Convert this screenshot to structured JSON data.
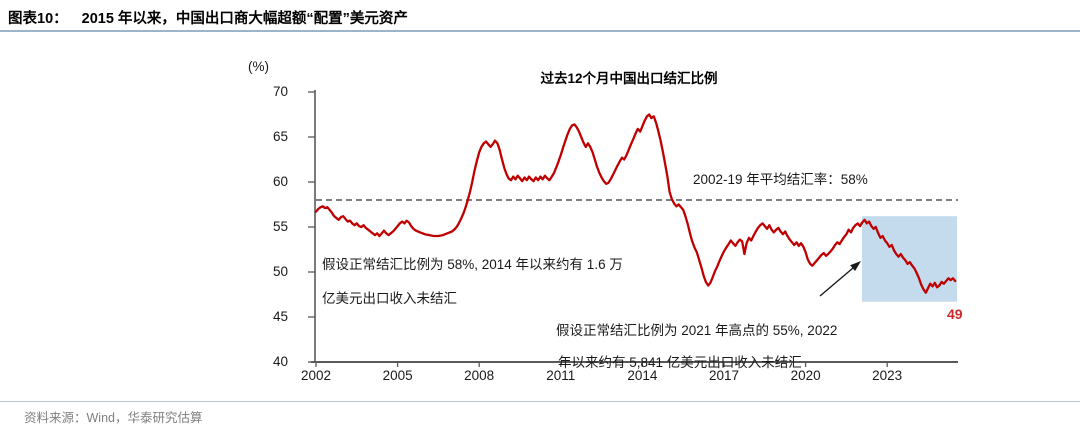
{
  "header": {
    "tag": "图表10：",
    "title": "2015 年以来，中国出口商大幅超额“配置”美元资产"
  },
  "source": "资料来源：Wind，华泰研究估算",
  "chart_data": {
    "type": "line",
    "title": "过去12个月中国出口结汇比例",
    "unit_label": "(%)",
    "xlabel": "",
    "ylabel": "(%)",
    "ylim": [
      40,
      70
    ],
    "yticks": [
      70,
      65,
      60,
      55,
      50,
      45,
      40
    ],
    "xticks": [
      2002,
      2005,
      2008,
      2011,
      2014,
      2017,
      2020,
      2023
    ],
    "xlim": [
      2002.0,
      2025.6
    ],
    "grid": false,
    "legend": "none",
    "colors": {
      "series": "#c00000",
      "reference": "#555555",
      "highlight": "#c4dbed",
      "axis": "#595959",
      "end_label": "#cc2a2a"
    },
    "reference_line": {
      "value": 58,
      "style": "dashed"
    },
    "highlight_region": {
      "x0": 2022.07,
      "x1": 2025.57,
      "y_bottom": 46.7,
      "y_top": 56.2
    },
    "annotations": {
      "avg": "2002-19 年平均结汇率：58%",
      "note1_line1": "假设正常结汇比例为 58%, 2014 年以来约有 1.6 万",
      "note1_line2": "亿美元出口收入未结汇",
      "note2_line1": "假设正常结汇比例为 2021 年高点的 55%, 2022",
      "note2_line2": "年以来约有 5,841 亿美元出口收入未结汇",
      "end_label": "49"
    },
    "series": [
      {
        "name": "过去12个月中国出口结汇比例",
        "color": "#c00000",
        "points": [
          [
            2002.0,
            56.7
          ],
          [
            2002.08,
            57.0
          ],
          [
            2002.17,
            57.2
          ],
          [
            2002.25,
            57.3
          ],
          [
            2002.33,
            57.1
          ],
          [
            2002.42,
            57.2
          ],
          [
            2002.5,
            56.9
          ],
          [
            2002.58,
            56.6
          ],
          [
            2002.67,
            56.2
          ],
          [
            2002.75,
            56.0
          ],
          [
            2002.83,
            55.8
          ],
          [
            2002.92,
            56.1
          ],
          [
            2003.0,
            56.2
          ],
          [
            2003.08,
            55.9
          ],
          [
            2003.17,
            55.6
          ],
          [
            2003.25,
            55.7
          ],
          [
            2003.33,
            55.4
          ],
          [
            2003.42,
            55.2
          ],
          [
            2003.5,
            55.4
          ],
          [
            2003.58,
            55.1
          ],
          [
            2003.67,
            55.0
          ],
          [
            2003.75,
            55.2
          ],
          [
            2003.83,
            54.9
          ],
          [
            2003.92,
            54.7
          ],
          [
            2004.0,
            54.5
          ],
          [
            2004.08,
            54.3
          ],
          [
            2004.17,
            54.1
          ],
          [
            2004.25,
            54.3
          ],
          [
            2004.33,
            54.0
          ],
          [
            2004.42,
            54.3
          ],
          [
            2004.5,
            54.6
          ],
          [
            2004.58,
            54.3
          ],
          [
            2004.67,
            54.1
          ],
          [
            2004.75,
            54.3
          ],
          [
            2004.83,
            54.5
          ],
          [
            2004.92,
            54.8
          ],
          [
            2005.0,
            55.1
          ],
          [
            2005.08,
            55.4
          ],
          [
            2005.17,
            55.6
          ],
          [
            2005.25,
            55.4
          ],
          [
            2005.33,
            55.7
          ],
          [
            2005.42,
            55.5
          ],
          [
            2005.5,
            55.1
          ],
          [
            2005.58,
            54.8
          ],
          [
            2005.67,
            54.6
          ],
          [
            2005.75,
            54.5
          ],
          [
            2005.83,
            54.4
          ],
          [
            2005.92,
            54.3
          ],
          [
            2006.0,
            54.2
          ],
          [
            2006.17,
            54.1
          ],
          [
            2006.33,
            54.0
          ],
          [
            2006.5,
            54.0
          ],
          [
            2006.67,
            54.1
          ],
          [
            2006.83,
            54.3
          ],
          [
            2007.0,
            54.5
          ],
          [
            2007.08,
            54.7
          ],
          [
            2007.17,
            55.0
          ],
          [
            2007.25,
            55.4
          ],
          [
            2007.33,
            55.9
          ],
          [
            2007.42,
            56.5
          ],
          [
            2007.5,
            57.2
          ],
          [
            2007.58,
            58.0
          ],
          [
            2007.67,
            59.0
          ],
          [
            2007.75,
            60.1
          ],
          [
            2007.83,
            61.3
          ],
          [
            2007.92,
            62.4
          ],
          [
            2008.0,
            63.3
          ],
          [
            2008.08,
            63.9
          ],
          [
            2008.17,
            64.3
          ],
          [
            2008.25,
            64.5
          ],
          [
            2008.33,
            64.2
          ],
          [
            2008.42,
            63.9
          ],
          [
            2008.5,
            64.2
          ],
          [
            2008.58,
            64.6
          ],
          [
            2008.67,
            64.3
          ],
          [
            2008.75,
            63.6
          ],
          [
            2008.83,
            62.6
          ],
          [
            2008.92,
            61.6
          ],
          [
            2009.0,
            60.9
          ],
          [
            2009.08,
            60.4
          ],
          [
            2009.17,
            60.2
          ],
          [
            2009.25,
            60.6
          ],
          [
            2009.33,
            60.3
          ],
          [
            2009.42,
            60.7
          ],
          [
            2009.5,
            60.4
          ],
          [
            2009.58,
            60.1
          ],
          [
            2009.67,
            60.5
          ],
          [
            2009.75,
            60.2
          ],
          [
            2009.83,
            60.6
          ],
          [
            2009.92,
            60.3
          ],
          [
            2010.0,
            60.1
          ],
          [
            2010.08,
            60.5
          ],
          [
            2010.17,
            60.2
          ],
          [
            2010.25,
            60.6
          ],
          [
            2010.33,
            60.3
          ],
          [
            2010.42,
            60.7
          ],
          [
            2010.5,
            60.4
          ],
          [
            2010.58,
            60.2
          ],
          [
            2010.67,
            60.6
          ],
          [
            2010.75,
            61.0
          ],
          [
            2010.83,
            61.6
          ],
          [
            2010.92,
            62.3
          ],
          [
            2011.0,
            63.0
          ],
          [
            2011.08,
            63.8
          ],
          [
            2011.17,
            64.6
          ],
          [
            2011.25,
            65.3
          ],
          [
            2011.33,
            65.9
          ],
          [
            2011.42,
            66.3
          ],
          [
            2011.5,
            66.4
          ],
          [
            2011.58,
            66.1
          ],
          [
            2011.67,
            65.6
          ],
          [
            2011.75,
            65.0
          ],
          [
            2011.83,
            64.4
          ],
          [
            2011.92,
            63.9
          ],
          [
            2012.0,
            64.3
          ],
          [
            2012.08,
            63.9
          ],
          [
            2012.17,
            63.3
          ],
          [
            2012.25,
            62.5
          ],
          [
            2012.33,
            61.7
          ],
          [
            2012.42,
            61.0
          ],
          [
            2012.5,
            60.5
          ],
          [
            2012.58,
            60.1
          ],
          [
            2012.67,
            59.8
          ],
          [
            2012.75,
            59.9
          ],
          [
            2012.83,
            60.3
          ],
          [
            2012.92,
            60.8
          ],
          [
            2013.0,
            61.3
          ],
          [
            2013.08,
            61.8
          ],
          [
            2013.17,
            62.3
          ],
          [
            2013.25,
            62.7
          ],
          [
            2013.33,
            62.5
          ],
          [
            2013.42,
            63.0
          ],
          [
            2013.5,
            63.6
          ],
          [
            2013.58,
            64.2
          ],
          [
            2013.67,
            64.8
          ],
          [
            2013.75,
            65.4
          ],
          [
            2013.83,
            65.9
          ],
          [
            2013.92,
            65.6
          ],
          [
            2014.0,
            66.2
          ],
          [
            2014.08,
            66.8
          ],
          [
            2014.17,
            67.3
          ],
          [
            2014.25,
            67.5
          ],
          [
            2014.33,
            67.1
          ],
          [
            2014.42,
            67.3
          ],
          [
            2014.5,
            66.6
          ],
          [
            2014.58,
            65.7
          ],
          [
            2014.67,
            64.6
          ],
          [
            2014.75,
            63.4
          ],
          [
            2014.83,
            62.1
          ],
          [
            2014.92,
            60.6
          ],
          [
            2015.0,
            58.9
          ],
          [
            2015.08,
            58.1
          ],
          [
            2015.17,
            57.6
          ],
          [
            2015.25,
            57.3
          ],
          [
            2015.33,
            57.5
          ],
          [
            2015.42,
            57.2
          ],
          [
            2015.5,
            56.9
          ],
          [
            2015.58,
            56.2
          ],
          [
            2015.67,
            55.3
          ],
          [
            2015.75,
            54.3
          ],
          [
            2015.83,
            53.4
          ],
          [
            2015.92,
            52.7
          ],
          [
            2016.0,
            52.2
          ],
          [
            2016.08,
            51.4
          ],
          [
            2016.17,
            50.5
          ],
          [
            2016.25,
            49.6
          ],
          [
            2016.33,
            48.9
          ],
          [
            2016.42,
            48.5
          ],
          [
            2016.5,
            48.8
          ],
          [
            2016.58,
            49.4
          ],
          [
            2016.67,
            50.1
          ],
          [
            2016.75,
            50.6
          ],
          [
            2016.83,
            51.2
          ],
          [
            2016.92,
            51.8
          ],
          [
            2017.0,
            52.3
          ],
          [
            2017.08,
            52.7
          ],
          [
            2017.17,
            53.1
          ],
          [
            2017.25,
            53.5
          ],
          [
            2017.33,
            53.2
          ],
          [
            2017.42,
            52.9
          ],
          [
            2017.5,
            53.3
          ],
          [
            2017.58,
            53.6
          ],
          [
            2017.67,
            53.4
          ],
          [
            2017.75,
            52.0
          ],
          [
            2017.83,
            53.2
          ],
          [
            2017.92,
            53.8
          ],
          [
            2018.0,
            53.5
          ],
          [
            2018.08,
            54.0
          ],
          [
            2018.17,
            54.5
          ],
          [
            2018.25,
            54.9
          ],
          [
            2018.33,
            55.2
          ],
          [
            2018.42,
            55.4
          ],
          [
            2018.5,
            55.1
          ],
          [
            2018.58,
            54.8
          ],
          [
            2018.67,
            55.2
          ],
          [
            2018.75,
            54.7
          ],
          [
            2018.83,
            54.4
          ],
          [
            2018.92,
            54.7
          ],
          [
            2019.0,
            54.9
          ],
          [
            2019.08,
            54.5
          ],
          [
            2019.17,
            54.2
          ],
          [
            2019.25,
            54.5
          ],
          [
            2019.33,
            54.0
          ],
          [
            2019.42,
            53.6
          ],
          [
            2019.5,
            53.3
          ],
          [
            2019.58,
            53.0
          ],
          [
            2019.67,
            53.3
          ],
          [
            2019.75,
            52.9
          ],
          [
            2019.83,
            53.2
          ],
          [
            2019.92,
            52.8
          ],
          [
            2020.0,
            52.2
          ],
          [
            2020.08,
            51.4
          ],
          [
            2020.17,
            50.9
          ],
          [
            2020.25,
            50.7
          ],
          [
            2020.33,
            51.0
          ],
          [
            2020.42,
            51.3
          ],
          [
            2020.5,
            51.6
          ],
          [
            2020.58,
            51.9
          ],
          [
            2020.67,
            52.1
          ],
          [
            2020.75,
            51.8
          ],
          [
            2020.83,
            52.0
          ],
          [
            2020.92,
            52.3
          ],
          [
            2021.0,
            52.6
          ],
          [
            2021.08,
            53.0
          ],
          [
            2021.17,
            53.3
          ],
          [
            2021.25,
            53.1
          ],
          [
            2021.33,
            53.5
          ],
          [
            2021.42,
            53.9
          ],
          [
            2021.5,
            54.2
          ],
          [
            2021.58,
            54.7
          ],
          [
            2021.67,
            54.4
          ],
          [
            2021.75,
            54.9
          ],
          [
            2021.83,
            55.2
          ],
          [
            2021.92,
            55.4
          ],
          [
            2022.0,
            55.1
          ],
          [
            2022.08,
            55.5
          ],
          [
            2022.17,
            55.8
          ],
          [
            2022.25,
            55.4
          ],
          [
            2022.33,
            55.6
          ],
          [
            2022.42,
            55.1
          ],
          [
            2022.5,
            54.8
          ],
          [
            2022.58,
            55.0
          ],
          [
            2022.67,
            54.3
          ],
          [
            2022.75,
            53.8
          ],
          [
            2022.83,
            54.0
          ],
          [
            2022.92,
            53.5
          ],
          [
            2023.0,
            53.2
          ],
          [
            2023.08,
            52.8
          ],
          [
            2023.17,
            53.0
          ],
          [
            2023.25,
            52.4
          ],
          [
            2023.33,
            52.0
          ],
          [
            2023.42,
            51.7
          ],
          [
            2023.5,
            52.0
          ],
          [
            2023.58,
            51.6
          ],
          [
            2023.67,
            51.3
          ],
          [
            2023.75,
            50.9
          ],
          [
            2023.83,
            51.1
          ],
          [
            2023.92,
            50.7
          ],
          [
            2024.0,
            50.4
          ],
          [
            2024.08,
            49.9
          ],
          [
            2024.17,
            49.3
          ],
          [
            2024.25,
            48.6
          ],
          [
            2024.33,
            48.1
          ],
          [
            2024.42,
            47.7
          ],
          [
            2024.5,
            48.2
          ],
          [
            2024.58,
            48.7
          ],
          [
            2024.67,
            48.4
          ],
          [
            2024.75,
            48.8
          ],
          [
            2024.83,
            48.3
          ],
          [
            2024.92,
            48.5
          ],
          [
            2025.0,
            48.9
          ],
          [
            2025.08,
            48.7
          ],
          [
            2025.17,
            49.0
          ],
          [
            2025.25,
            49.3
          ],
          [
            2025.33,
            49.1
          ],
          [
            2025.42,
            49.3
          ],
          [
            2025.5,
            49.0
          ]
        ]
      }
    ]
  }
}
